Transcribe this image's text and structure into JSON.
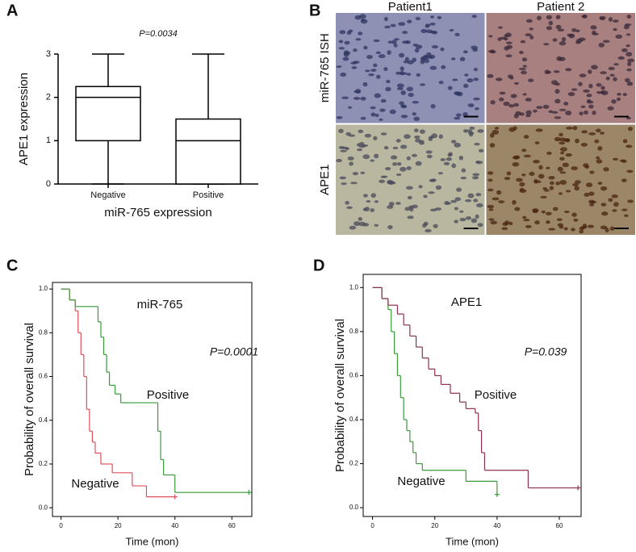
{
  "chart_data": [
    {
      "type": "box",
      "panel": "A",
      "annotation": "P=0.0034",
      "categories": [
        "Negative",
        "Positive"
      ],
      "boxes": [
        {
          "min": 0,
          "q1": 1,
          "median": 2,
          "q3": 2.25,
          "max": 3
        },
        {
          "min": 0,
          "q1": 0,
          "median": 1,
          "q3": 1.5,
          "max": 3
        }
      ],
      "ylabel": "APE1 expression",
      "xlabel": "miR-765 expression",
      "ylim": [
        0,
        3
      ],
      "yticks": [
        0,
        1,
        2,
        3
      ]
    },
    {
      "type": "image",
      "panel": "B",
      "columns": [
        "Patient1",
        "Patient 2"
      ],
      "rows": [
        "miR-765 ISH",
        "APE1"
      ]
    },
    {
      "type": "km",
      "panel": "C",
      "title": "miR-765",
      "annotation": "P=0.0001",
      "xlabel": "Time (mon)",
      "ylabel": "Probability of overall survival",
      "xlim": [
        -3,
        67
      ],
      "xticks": [
        0,
        20,
        40,
        60
      ],
      "ylim": [
        -0.04,
        1.03
      ],
      "yticks": [
        {
          "value": 0,
          "label": "0.0"
        },
        0.2,
        0.4,
        0.6,
        0.8,
        {
          "value": 1,
          "label": "1.0"
        }
      ],
      "series": [
        {
          "name": "Negative",
          "color": "#e0505a",
          "x": [
            0,
            3,
            5,
            6,
            7,
            8,
            9,
            10,
            11,
            12,
            14,
            18,
            25,
            30,
            40
          ],
          "values": [
            1,
            0.95,
            0.9,
            0.8,
            0.7,
            0.6,
            0.45,
            0.35,
            0.3,
            0.25,
            0.2,
            0.16,
            0.1,
            0.05,
            0.05
          ]
        },
        {
          "name": "Positive",
          "color": "#3a9a3a",
          "x": [
            0,
            3,
            5,
            13,
            14,
            15,
            16,
            17,
            19,
            21,
            24,
            34,
            35,
            36,
            40,
            50,
            66
          ],
          "values": [
            1,
            0.95,
            0.92,
            0.85,
            0.78,
            0.7,
            0.62,
            0.56,
            0.52,
            0.48,
            0.48,
            0.35,
            0.22,
            0.15,
            0.07,
            0.07,
            0.07
          ]
        }
      ]
    },
    {
      "type": "km",
      "panel": "D",
      "title": "APE1",
      "annotation": "P=0.039",
      "xlabel": "Time (mon)",
      "ylabel": "Probability of overall survival",
      "xlim": [
        -3,
        67
      ],
      "xticks": [
        0,
        20,
        40,
        60
      ],
      "ylim": [
        -0.04,
        1.06
      ],
      "yticks": [
        {
          "value": 0,
          "label": "0.0"
        },
        0.2,
        0.4,
        0.6,
        0.8,
        {
          "value": 1,
          "label": "1.0"
        }
      ],
      "series": [
        {
          "name": "Negative",
          "color": "#3a9a3a",
          "x": [
            0,
            3,
            5,
            6,
            7,
            8,
            9,
            10,
            11,
            12,
            13,
            14,
            16,
            30,
            40
          ],
          "values": [
            1,
            0.95,
            0.9,
            0.8,
            0.7,
            0.6,
            0.5,
            0.4,
            0.35,
            0.3,
            0.25,
            0.2,
            0.17,
            0.12,
            0.06
          ]
        },
        {
          "name": "Positive",
          "color": "#8b3050",
          "x": [
            0,
            3,
            5,
            8,
            10,
            12,
            14,
            16,
            18,
            20,
            22,
            25,
            28,
            30,
            33,
            34,
            35,
            36,
            49,
            50,
            66
          ],
          "values": [
            1,
            0.95,
            0.92,
            0.88,
            0.83,
            0.78,
            0.73,
            0.68,
            0.63,
            0.6,
            0.56,
            0.52,
            0.48,
            0.45,
            0.43,
            0.35,
            0.25,
            0.17,
            0.17,
            0.09,
            0.09
          ]
        }
      ]
    }
  ]
}
